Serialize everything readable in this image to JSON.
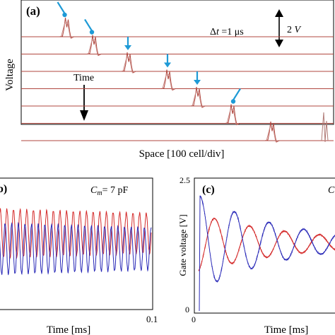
{
  "colors": {
    "trace": "#b0473f",
    "trace_light": "#c98a85",
    "ringing": "#b07a76",
    "arrow": "#1e9ad6",
    "red": "#d42a2a",
    "blue": "#2a2ab8",
    "axis": "#000000"
  },
  "panel_a": {
    "tag": "(a)",
    "ylabel": "Voltage",
    "xlabel": "Space [100 cell/div]",
    "time_label": "Time",
    "dt_prefix": "Δ",
    "dt_italic": "t",
    "dt_rest": " =1 μs",
    "scale_num": "2 ",
    "scale_unit": "V"
  },
  "panel_b": {
    "tag": "b)",
    "cm_sym": "C",
    "cm_sub": "m",
    "cm_value": "= 7 pF",
    "xlabel": "Time [ms]",
    "xtick_end": "0.1"
  },
  "panel_c": {
    "tag": "(c)",
    "corner_sym": "C",
    "ylabel": "Gate voltage [V]",
    "xlabel": "Time [ms]",
    "ytick_top": "2.5",
    "ytick_bottom": "0",
    "xtick_left": "0"
  },
  "chart_data": [
    {
      "type": "line",
      "panel": "a",
      "title": "",
      "xlabel": "Space [100 cell/div]",
      "ylabel": "Voltage",
      "annotations": [
        "Δt =1 μs",
        "2 V",
        "Time"
      ],
      "series": [
        {
          "trace": 1,
          "pulse_position_div": 0.45
        },
        {
          "trace": 2,
          "pulse_position_div": 1.0
        },
        {
          "trace": 3,
          "pulse_position_div": 1.7
        },
        {
          "trace": 4,
          "pulse_position_div": 2.5
        },
        {
          "trace": 5,
          "pulse_position_div": 3.1
        },
        {
          "trace": 6,
          "pulse_position_div": 3.8
        },
        {
          "trace": 7,
          "pulse_position_div": 4.6
        }
      ]
    },
    {
      "type": "line",
      "panel": "b",
      "title": "",
      "xlabel": "Time [ms]",
      "annotations": [
        "Cm = 7 pF"
      ],
      "xlim": [
        0,
        0.1
      ],
      "series": [
        {
          "color": "red",
          "oscillation_cycles": 23
        },
        {
          "color": "blue",
          "oscillation_cycles": 23
        }
      ]
    },
    {
      "type": "line",
      "panel": "c",
      "title": "",
      "xlabel": "Time [ms]",
      "ylabel": "Gate voltage [V]",
      "ylim": [
        0,
        2.5
      ],
      "series": [
        {
          "color": "red",
          "initial_value": 1.7,
          "damped_oscillation": true
        },
        {
          "color": "blue",
          "initial_value": 2.2,
          "damped_oscillation": true
        }
      ]
    }
  ]
}
